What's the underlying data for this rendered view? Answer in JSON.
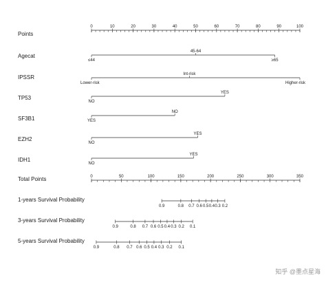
{
  "chart_data": {
    "type": "nomogram",
    "rows": [
      {
        "key": "points",
        "label": "Points",
        "kind": "scale",
        "ticks": [
          0,
          10,
          20,
          30,
          40,
          50,
          60,
          70,
          80,
          90,
          100
        ],
        "labels": [
          "0",
          "10",
          "20",
          "30",
          "40",
          "50",
          "60",
          "70",
          "80",
          "90",
          "100"
        ],
        "minor_step": 2
      },
      {
        "key": "agecat",
        "label": "Agecat",
        "kind": "categorical",
        "levels": [
          {
            "label": "≤44",
            "points": 0,
            "side": "below"
          },
          {
            "label": "45-64",
            "points": 50,
            "side": "above"
          },
          {
            "label": "≥65",
            "points": 88,
            "side": "below"
          }
        ]
      },
      {
        "key": "ipssr",
        "label": "IPSSR",
        "kind": "categorical",
        "levels": [
          {
            "label": "Lower-risk",
            "points": 0,
            "side": "below"
          },
          {
            "label": "Int-risk",
            "points": 47,
            "side": "above"
          },
          {
            "label": "Higher-risk",
            "points": 100,
            "side": "below"
          }
        ]
      },
      {
        "key": "tp53",
        "label": "TP53",
        "kind": "categorical",
        "levels": [
          {
            "label": "NO",
            "points": 0,
            "side": "below"
          },
          {
            "label": "YES",
            "points": 64,
            "side": "above"
          }
        ]
      },
      {
        "key": "sf3b1",
        "label": "SF3B1",
        "kind": "categorical",
        "levels": [
          {
            "label": "YES",
            "points": 0,
            "side": "below"
          },
          {
            "label": "NO",
            "points": 40,
            "side": "above"
          }
        ]
      },
      {
        "key": "ezh2",
        "label": "EZH2",
        "kind": "categorical",
        "levels": [
          {
            "label": "NO",
            "points": 0,
            "side": "below"
          },
          {
            "label": "YES",
            "points": 51,
            "side": "above"
          }
        ]
      },
      {
        "key": "idh1",
        "label": "IDH1",
        "kind": "categorical",
        "levels": [
          {
            "label": "NO",
            "points": 0,
            "side": "below"
          },
          {
            "label": "YES",
            "points": 49,
            "side": "above"
          }
        ]
      },
      {
        "key": "total",
        "label": "Total Points",
        "kind": "scale",
        "ticks": [
          0,
          50,
          100,
          150,
          200,
          250,
          300,
          350
        ],
        "labels": [
          "0",
          "50",
          "100",
          "150",
          "200",
          "250",
          "300",
          "350"
        ],
        "max": 350,
        "minor_step": 10
      },
      {
        "key": "surv1",
        "label": "1-years Survival Probability",
        "kind": "survival",
        "ticks": [
          {
            "label": "0.9",
            "total": 118
          },
          {
            "label": "0.8",
            "total": 150
          },
          {
            "label": "0.7",
            "total": 168
          },
          {
            "label": "0.6",
            "total": 181
          },
          {
            "label": "0.5",
            "total": 192
          },
          {
            "label": "0.4",
            "total": 202
          },
          {
            "label": "0.3",
            "total": 212
          },
          {
            "label": "0.2",
            "total": 224
          }
        ]
      },
      {
        "key": "surv3",
        "label": "3-years Survival Probability",
        "kind": "survival",
        "ticks": [
          {
            "label": "0.9",
            "total": 40
          },
          {
            "label": "0.8",
            "total": 70
          },
          {
            "label": "0.7",
            "total": 90
          },
          {
            "label": "0.6",
            "total": 104
          },
          {
            "label": "0.5",
            "total": 116
          },
          {
            "label": "0.4",
            "total": 127
          },
          {
            "label": "0.3",
            "total": 138
          },
          {
            "label": "0.2",
            "total": 151
          },
          {
            "label": "0.1",
            "total": 170
          }
        ]
      },
      {
        "key": "surv5",
        "label": "5-years Survival Probability",
        "kind": "survival",
        "ticks": [
          {
            "label": "0.9",
            "total": 8
          },
          {
            "label": "0.8",
            "total": 42
          },
          {
            "label": "0.7",
            "total": 64
          },
          {
            "label": "0.6",
            "total": 80
          },
          {
            "label": "0.5",
            "total": 93
          },
          {
            "label": "0.4",
            "total": 105
          },
          {
            "label": "0.3",
            "total": 117
          },
          {
            "label": "0.2",
            "total": 131
          },
          {
            "label": "0.1",
            "total": 151
          }
        ]
      }
    ]
  },
  "watermark": {
    "text": "知乎 @墨点星海"
  }
}
